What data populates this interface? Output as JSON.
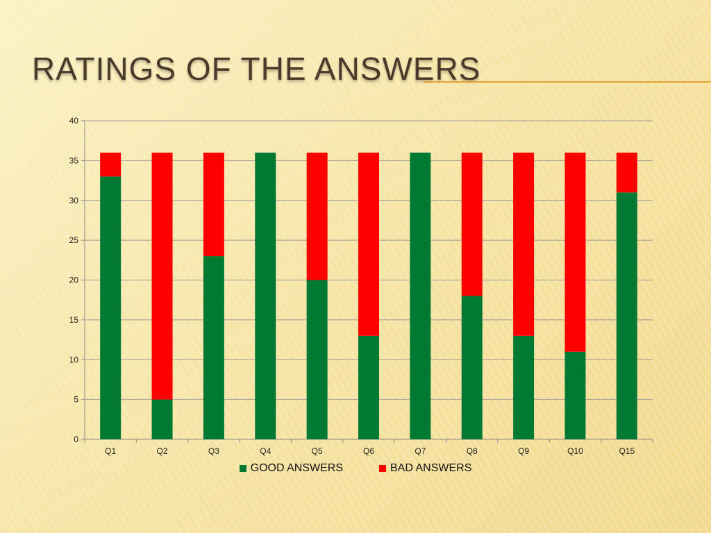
{
  "title": "RATINGS OF THE ANSWERS",
  "chart_data": {
    "type": "bar",
    "stacked": true,
    "categories": [
      "Q1",
      "Q2",
      "Q3",
      "Q4",
      "Q5",
      "Q6",
      "Q7",
      "Q8",
      "Q9",
      "Q10",
      "Q15"
    ],
    "series": [
      {
        "name": "GOOD ANSWERS",
        "color": "#007a33",
        "values": [
          33,
          5,
          23,
          36,
          20,
          13,
          36,
          18,
          13,
          11,
          31
        ]
      },
      {
        "name": "BAD ANSWERS",
        "color": "#ff0000",
        "values": [
          3,
          31,
          13,
          0,
          16,
          23,
          0,
          18,
          23,
          25,
          5
        ]
      }
    ],
    "ylim": [
      0,
      40
    ],
    "yticks": [
      0,
      5,
      10,
      15,
      20,
      25,
      30,
      35,
      40
    ],
    "grid": true,
    "legend_position": "bottom"
  }
}
